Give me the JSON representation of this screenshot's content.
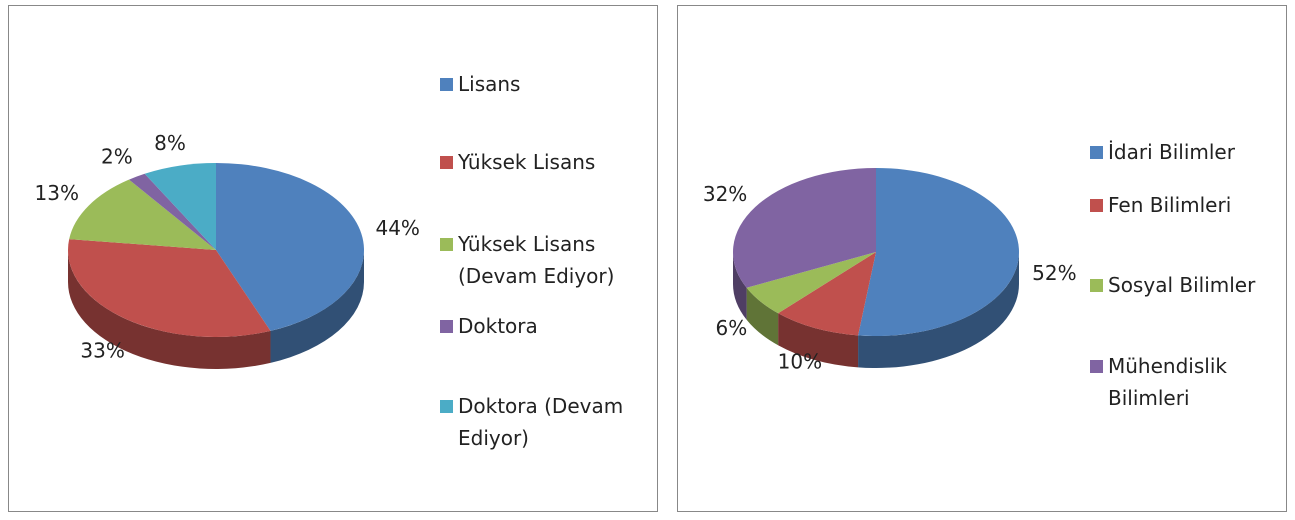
{
  "chart_data": [
    {
      "type": "pie",
      "categories": [
        "Lisans",
        "Yüksek Lisans",
        "Yüksek Lisans (Devam Ediyor)",
        "Doktora",
        "Doktora (Devam Ediyor)"
      ],
      "values": [
        44,
        33,
        13,
        2,
        8
      ],
      "value_labels": [
        "44%",
        "33%",
        "13%",
        "2%",
        "8%"
      ],
      "colors": [
        "#4f81bd",
        "#c0504d",
        "#9bbb59",
        "#8064a2",
        "#4bacc6"
      ],
      "legend": "right"
    },
    {
      "type": "pie",
      "categories": [
        "İdari Bilimler",
        "Fen Bilimleri",
        "Sosyal Bilimler",
        "Mühendislik Bilimleri"
      ],
      "values": [
        52,
        10,
        6,
        32
      ],
      "value_labels": [
        "52%",
        "10%",
        "6%",
        "32%"
      ],
      "colors": [
        "#4f81bd",
        "#c0504d",
        "#9bbb59",
        "#8064a2"
      ],
      "legend": "right"
    }
  ]
}
